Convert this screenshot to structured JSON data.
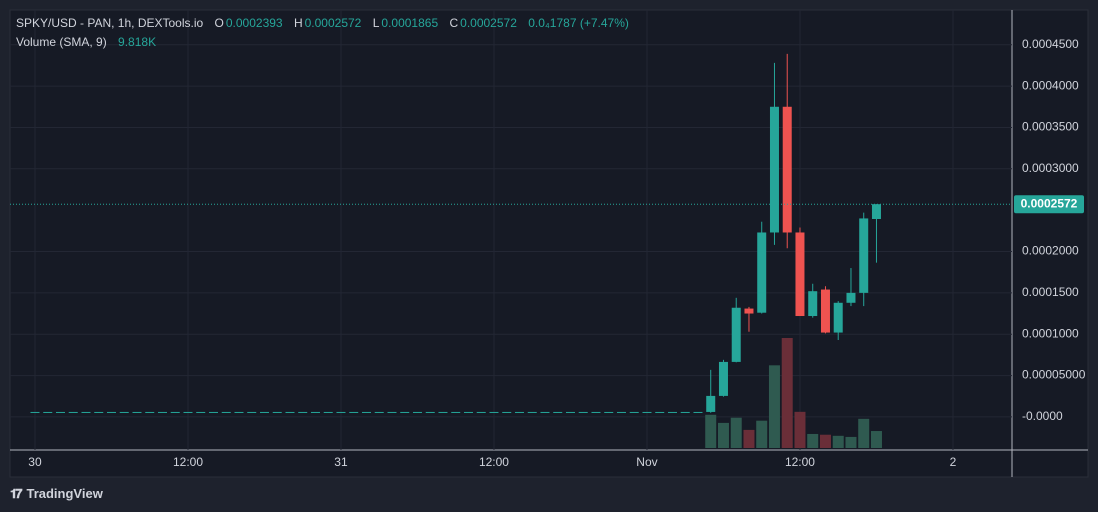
{
  "chart_data": {
    "type": "candlestick",
    "title": "SPKY/USD - PAN, 1h, DEXTools.io",
    "ohlc_labels": [
      "O",
      "H",
      "L",
      "C"
    ],
    "change_label": "0.0₄1787 (+7.47%)",
    "volume_name": "Volume (SMA, 9)",
    "volume_sma": "9.818K",
    "watermark": "TradingView",
    "x": [
      0,
      1,
      2,
      3,
      4,
      5,
      6,
      7,
      8,
      9,
      10,
      11,
      12,
      13,
      14,
      15,
      16,
      17,
      18,
      19,
      20,
      21,
      22,
      23,
      24,
      25,
      26,
      27,
      28,
      29,
      30,
      31,
      32,
      33,
      34,
      35,
      36,
      37,
      38,
      39,
      40,
      41,
      42,
      43,
      44,
      45,
      46,
      47,
      48,
      49,
      50,
      51,
      52,
      53,
      54,
      55,
      56,
      57,
      58,
      59,
      60,
      61,
      62,
      63,
      64,
      65,
      66
    ],
    "open": [
      6e-06,
      6e-06,
      6e-06,
      6e-06,
      6e-06,
      6e-06,
      6e-06,
      6e-06,
      6e-06,
      6e-06,
      6e-06,
      6e-06,
      6e-06,
      6e-06,
      6e-06,
      6e-06,
      6e-06,
      6e-06,
      6e-06,
      6e-06,
      6e-06,
      6e-06,
      6e-06,
      6e-06,
      6e-06,
      6e-06,
      6e-06,
      6e-06,
      6e-06,
      6e-06,
      6e-06,
      6e-06,
      6e-06,
      6e-06,
      6e-06,
      6e-06,
      6e-06,
      6e-06,
      6e-06,
      6e-06,
      6e-06,
      6e-06,
      6e-06,
      6e-06,
      6e-06,
      6e-06,
      6e-06,
      6e-06,
      6e-06,
      6e-06,
      6e-06,
      6e-06,
      6e-06,
      6e-06,
      2.54e-05,
      6.65e-05,
      0.000131,
      0.000126,
      0.000223,
      0.000375,
      0.000223,
      0.000122,
      0.000154,
      0.000102,
      0.000138,
      0.00015,
      0.0002393
    ],
    "high": [
      6e-06,
      6e-06,
      6e-06,
      6e-06,
      6e-06,
      6e-06,
      6e-06,
      6e-06,
      6e-06,
      6e-06,
      6e-06,
      6e-06,
      6e-06,
      6e-06,
      6e-06,
      6e-06,
      6e-06,
      6e-06,
      6e-06,
      6e-06,
      6e-06,
      6e-06,
      6e-06,
      6e-06,
      6e-06,
      6e-06,
      6e-06,
      6e-06,
      6e-06,
      6e-06,
      6e-06,
      6e-06,
      6e-06,
      6e-06,
      6e-06,
      6e-06,
      6e-06,
      6e-06,
      6e-06,
      6e-06,
      6e-06,
      6e-06,
      6e-06,
      6e-06,
      6e-06,
      6e-06,
      6e-06,
      6e-06,
      6e-06,
      6e-06,
      6e-06,
      6e-06,
      6e-06,
      5.69e-05,
      6.9e-05,
      0.000144,
      0.000133,
      0.000236,
      0.000428,
      0.000439,
      0.000229,
      0.000161,
      0.000158,
      0.00014,
      0.00018,
      0.000247,
      0.0002572
    ],
    "low": [
      6e-06,
      6e-06,
      6e-06,
      6e-06,
      6e-06,
      6e-06,
      6e-06,
      6e-06,
      6e-06,
      6e-06,
      6e-06,
      6e-06,
      6e-06,
      6e-06,
      6e-06,
      6e-06,
      6e-06,
      6e-06,
      6e-06,
      6e-06,
      6e-06,
      6e-06,
      6e-06,
      6e-06,
      6e-06,
      6e-06,
      6e-06,
      6e-06,
      6e-06,
      6e-06,
      6e-06,
      6e-06,
      6e-06,
      6e-06,
      6e-06,
      6e-06,
      6e-06,
      6e-06,
      6e-06,
      6e-06,
      6e-06,
      6e-06,
      6e-06,
      6e-06,
      6e-06,
      6e-06,
      6e-06,
      6e-06,
      6e-06,
      6e-06,
      6e-06,
      6e-06,
      6e-06,
      5e-06,
      2.45e-05,
      6.6e-05,
      0.000103,
      0.000125,
      0.000208,
      0.000204,
      0.000122,
      0.00012,
      0.000101,
      9.3e-05,
      0.000134,
      0.000134,
      0.0001865
    ],
    "close": [
      6e-06,
      6e-06,
      6e-06,
      6e-06,
      6e-06,
      6e-06,
      6e-06,
      6e-06,
      6e-06,
      6e-06,
      6e-06,
      6e-06,
      6e-06,
      6e-06,
      6e-06,
      6e-06,
      6e-06,
      6e-06,
      6e-06,
      6e-06,
      6e-06,
      6e-06,
      6e-06,
      6e-06,
      6e-06,
      6e-06,
      6e-06,
      6e-06,
      6e-06,
      6e-06,
      6e-06,
      6e-06,
      6e-06,
      6e-06,
      6e-06,
      6e-06,
      6e-06,
      6e-06,
      6e-06,
      6e-06,
      6e-06,
      6e-06,
      6e-06,
      6e-06,
      6e-06,
      6e-06,
      6e-06,
      6e-06,
      6e-06,
      6e-06,
      6e-06,
      6e-06,
      6e-06,
      2.54e-05,
      6.65e-05,
      0.000132,
      0.000125,
      0.000223,
      0.000375,
      0.000223,
      0.000122,
      0.000152,
      0.000102,
      0.000138,
      0.00015,
      0.00024,
      0.0002572
    ],
    "volume": [
      0,
      0,
      0,
      0,
      0,
      0,
      0,
      0,
      0,
      0,
      0,
      0,
      0,
      0,
      0,
      0,
      0,
      0,
      0,
      0,
      0,
      0,
      0,
      0,
      0,
      0,
      0,
      0,
      0,
      0,
      0,
      0,
      0,
      0,
      0,
      0,
      0,
      0,
      0,
      0,
      0,
      0,
      0,
      0,
      0,
      0,
      0,
      0,
      0,
      0,
      0,
      0,
      0,
      9000,
      6800,
      8200,
      4900,
      7400,
      22400,
      29800,
      9800,
      3800,
      3600,
      3300,
      3000,
      7900,
      4600
    ],
    "up_color": "#26a69a",
    "down_color": "#ef5350",
    "xlim": [
      -1.96,
      76.63
    ],
    "xticks": [
      {
        "value": 0,
        "label": "30"
      },
      {
        "value": 12,
        "label": "12:00"
      },
      {
        "value": 24,
        "label": "31"
      },
      {
        "value": 36,
        "label": "12:00"
      },
      {
        "value": 48,
        "label": "Nov"
      },
      {
        "value": 60,
        "label": "12:00"
      },
      {
        "value": 72,
        "label": "2"
      }
    ],
    "ylim": [
      -4e-05,
      0.000492
    ],
    "yticks": [
      {
        "value": 0.00045,
        "label": "0.0004500"
      },
      {
        "value": 0.0004,
        "label": "0.0004000"
      },
      {
        "value": 0.00035,
        "label": "0.0003500"
      },
      {
        "value": 0.0003,
        "label": "0.0003000"
      },
      {
        "value": 0.0002,
        "label": "0.0002000"
      },
      {
        "value": 0.00015,
        "label": "0.0001500"
      },
      {
        "value": 0.0001,
        "label": "0.0001000"
      },
      {
        "value": 5e-05,
        "label": "0.00005000"
      },
      {
        "value": 0,
        "label": "-0.0000"
      }
    ],
    "grid": true,
    "last_price_line": true
  }
}
